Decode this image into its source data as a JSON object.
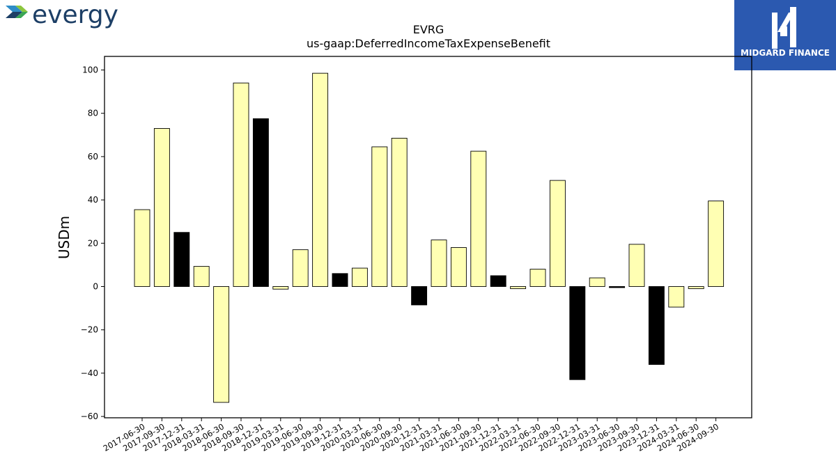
{
  "brand": {
    "name": "evergy",
    "logo_icon": "evergy-chevron-logo-icon",
    "colors": {
      "chevron_top": "#2e8cc7",
      "chevron_bottom": "#8cc63f",
      "text": "#1d3f66"
    }
  },
  "partner": {
    "name": "MIDGARD FINANCE",
    "logo_icon": "midgard-finance-logo-icon",
    "background": "#2b59b0"
  },
  "chart_data": {
    "type": "bar",
    "title": "EVRG",
    "subtitle": "us-gaap:DeferredIncomeTaxExpenseBenefit",
    "xlabel": "",
    "ylabel": "USDm",
    "ylim": [
      -61,
      106
    ],
    "yticks": [
      -60,
      -40,
      -20,
      0,
      20,
      40,
      60,
      80,
      100
    ],
    "grid": false,
    "legend": "none",
    "colors": {
      "highlight": "#ffffb3",
      "standard": "#000000",
      "edge": "#000000"
    },
    "categories": [
      "2017-06-30",
      "2017-09-30",
      "2017-12-31",
      "2018-03-31",
      "2018-06-30",
      "2018-09-30",
      "2018-12-31",
      "2019-03-31",
      "2019-06-30",
      "2019-09-30",
      "2019-12-31",
      "2020-03-31",
      "2020-06-30",
      "2020-09-30",
      "2020-12-31",
      "2021-03-31",
      "2021-06-30",
      "2021-09-30",
      "2021-12-31",
      "2022-03-31",
      "2022-06-30",
      "2022-09-30",
      "2022-12-31",
      "2023-03-31",
      "2023-06-30",
      "2023-09-30",
      "2023-12-31",
      "2024-03-31",
      "2024-06-30",
      "2024-09-30"
    ],
    "values": [
      35.5,
      73,
      25,
      9.3,
      -53.5,
      94,
      77.5,
      -1.2,
      17,
      98.5,
      6,
      8.5,
      64.5,
      68.5,
      -8.5,
      21.5,
      18,
      62.5,
      5,
      -1,
      8,
      49,
      -43,
      4,
      -0.5,
      19.5,
      -36,
      -9.5,
      -1,
      39.5
    ],
    "fills": [
      "highlight",
      "highlight",
      "standard",
      "highlight",
      "highlight",
      "highlight",
      "standard",
      "highlight",
      "highlight",
      "highlight",
      "standard",
      "highlight",
      "highlight",
      "highlight",
      "standard",
      "highlight",
      "highlight",
      "highlight",
      "standard",
      "highlight",
      "highlight",
      "highlight",
      "standard",
      "highlight",
      "standard",
      "highlight",
      "standard",
      "highlight",
      "highlight",
      "highlight"
    ]
  }
}
